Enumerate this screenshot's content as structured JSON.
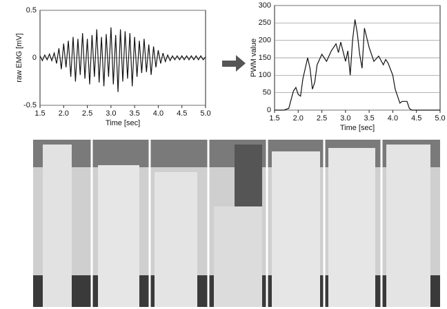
{
  "chart_data": [
    {
      "type": "line",
      "y_label": "raw EMG [mV]",
      "x_label": "Time [sec]",
      "color": "#111111",
      "grid": true,
      "xlim": [
        1.5,
        5.0
      ],
      "xticks": [
        1.5,
        {
          "value": 2,
          "label": "2.0"
        },
        2.5,
        {
          "value": 3,
          "label": "3.0"
        },
        3.5,
        {
          "value": 4,
          "label": "4.0"
        },
        4.5,
        {
          "value": 5,
          "label": "5.0"
        }
      ],
      "ylim": [
        -0.5,
        0.5
      ],
      "yticks": [
        -0.5,
        0,
        0.5
      ],
      "x": [
        1.5,
        1.55,
        1.6,
        1.65,
        1.7,
        1.75,
        1.8,
        1.85,
        1.9,
        1.95,
        2.0,
        2.05,
        2.1,
        2.15,
        2.2,
        2.25,
        2.3,
        2.35,
        2.4,
        2.45,
        2.5,
        2.55,
        2.6,
        2.65,
        2.7,
        2.75,
        2.8,
        2.85,
        2.9,
        2.95,
        3.0,
        3.05,
        3.1,
        3.15,
        3.2,
        3.25,
        3.3,
        3.35,
        3.4,
        3.45,
        3.5,
        3.55,
        3.6,
        3.65,
        3.7,
        3.75,
        3.8,
        3.85,
        3.9,
        3.95,
        4.0,
        4.05,
        4.1,
        4.15,
        4.2,
        4.25,
        4.3,
        4.35,
        4.4,
        4.45,
        4.5,
        4.55,
        4.6,
        4.65,
        4.7,
        4.75,
        4.8,
        4.85,
        4.9,
        4.95,
        5.0
      ],
      "values": [
        0.02,
        -0.03,
        0.03,
        -0.02,
        0.04,
        -0.03,
        0.05,
        -0.06,
        0.1,
        -0.12,
        0.15,
        -0.1,
        0.18,
        -0.2,
        0.22,
        -0.25,
        0.2,
        -0.18,
        0.26,
        -0.22,
        0.2,
        -0.28,
        0.24,
        -0.2,
        0.3,
        -0.26,
        0.22,
        -0.3,
        0.25,
        -0.2,
        0.32,
        -0.28,
        0.24,
        -0.36,
        0.3,
        -0.25,
        0.28,
        -0.22,
        0.26,
        -0.3,
        0.22,
        -0.2,
        0.18,
        -0.16,
        0.2,
        -0.15,
        0.14,
        -0.18,
        0.12,
        -0.1,
        0.08,
        -0.06,
        0.05,
        -0.04,
        0.03,
        -0.03,
        0.02,
        -0.02,
        0.02,
        -0.02,
        0.02,
        -0.02,
        0.02,
        -0.02,
        0.02,
        -0.02,
        0.02,
        -0.02,
        0.02,
        -0.02,
        0.01
      ]
    },
    {
      "type": "line",
      "y_label": "PWM value",
      "x_label": "Time [sec]",
      "color": "#111111",
      "grid": true,
      "xlim": [
        1.5,
        5.0
      ],
      "xticks": [
        1.5,
        {
          "value": 2,
          "label": "2.0"
        },
        2.5,
        {
          "value": 3,
          "label": "3.0"
        },
        3.5,
        {
          "value": 4,
          "label": "4.0"
        },
        4.5,
        {
          "value": 5,
          "label": "5.0"
        }
      ],
      "ylim": [
        0,
        300
      ],
      "yticks": [
        0,
        50,
        100,
        150,
        200,
        250,
        300
      ],
      "x": [
        1.5,
        1.7,
        1.8,
        1.9,
        1.95,
        2.0,
        2.05,
        2.1,
        2.2,
        2.25,
        2.3,
        2.35,
        2.4,
        2.5,
        2.6,
        2.7,
        2.8,
        2.85,
        2.9,
        3.0,
        3.05,
        3.1,
        3.15,
        3.2,
        3.25,
        3.3,
        3.35,
        3.4,
        3.5,
        3.6,
        3.7,
        3.8,
        3.85,
        3.9,
        4.0,
        4.05,
        4.1,
        4.15,
        4.2,
        4.3,
        4.35,
        4.4,
        4.5,
        5.0
      ],
      "values": [
        0,
        0,
        5,
        55,
        65,
        45,
        40,
        90,
        150,
        120,
        60,
        80,
        130,
        160,
        140,
        170,
        190,
        165,
        195,
        140,
        170,
        100,
        200,
        260,
        220,
        160,
        120,
        235,
        180,
        140,
        155,
        130,
        145,
        135,
        100,
        60,
        40,
        20,
        25,
        25,
        5,
        0,
        0,
        0
      ]
    }
  ]
}
